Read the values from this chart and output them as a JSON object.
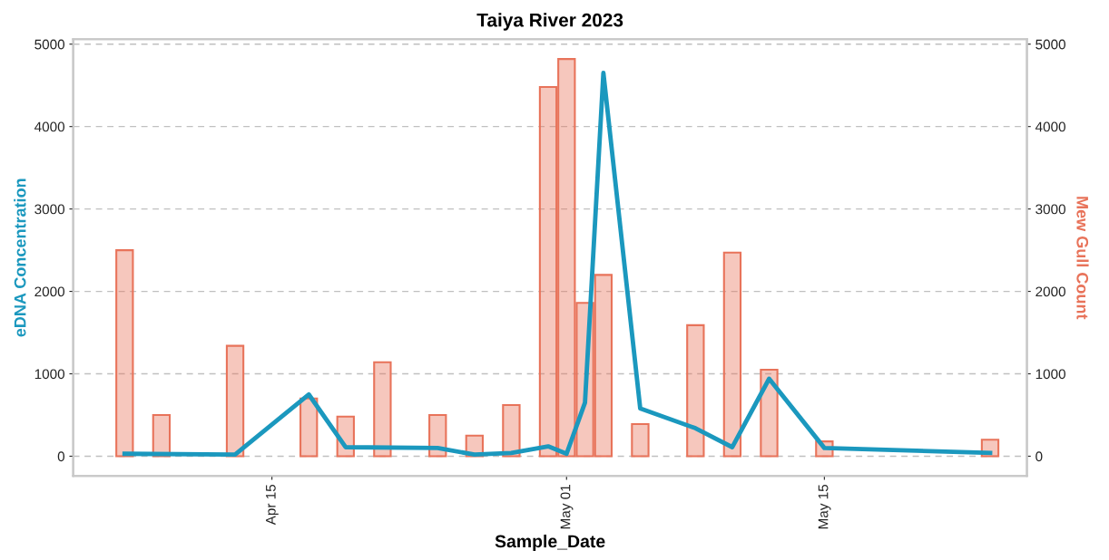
{
  "chart_data": {
    "type": "line",
    "title": "Taiya River 2023",
    "xlabel": "Sample_Date",
    "ylabel": "eDNA Concentration",
    "y2label": "Mew Gull Count",
    "series": [
      {
        "type": "bar",
        "axis": "y2",
        "color": "#e8735a",
        "x": [
          "2023-04-07",
          "2023-04-09",
          "2023-04-13",
          "2023-04-17",
          "2023-04-19",
          "2023-04-21",
          "2023-04-24",
          "2023-04-26",
          "2023-04-28",
          "2023-04-30",
          "2023-05-01",
          "2023-05-02",
          "2023-05-03",
          "2023-05-05",
          "2023-05-08",
          "2023-05-10",
          "2023-05-12",
          "2023-05-15",
          "2023-05-24"
        ],
        "values": [
          2500,
          500,
          1340,
          700,
          480,
          1140,
          500,
          250,
          620,
          4480,
          4820,
          1860,
          2200,
          390,
          1590,
          2470,
          1050,
          180,
          200
        ]
      },
      {
        "axis": "y",
        "color": "#1b98be",
        "x": [
          "2023-04-07",
          "2023-04-13",
          "2023-04-17",
          "2023-04-19",
          "2023-04-24",
          "2023-04-26",
          "2023-04-28",
          "2023-04-30",
          "2023-05-01",
          "2023-05-02",
          "2023-05-03",
          "2023-05-05",
          "2023-05-08",
          "2023-05-10",
          "2023-05-12",
          "2023-05-15",
          "2023-05-24"
        ],
        "values": [
          30,
          20,
          750,
          110,
          100,
          20,
          40,
          120,
          30,
          650,
          4650,
          580,
          340,
          110,
          940,
          100,
          40
        ]
      }
    ],
    "xlim": [
      "2023-04-04T05:00",
      "2023-05-26"
    ],
    "xticks": [
      {
        "value": "2023-04-15",
        "label": "Apr 15"
      },
      {
        "value": "2023-05-01",
        "label": "May 01"
      },
      {
        "value": "2023-05-15",
        "label": "May 15"
      }
    ],
    "ylim": [
      -240,
      5060
    ],
    "yticks": [
      0,
      1000,
      2000,
      3000,
      4000,
      5000
    ],
    "y2lim": [
      -240,
      5060
    ],
    "y2ticks": [
      0,
      1000,
      2000,
      3000,
      4000,
      5000
    ],
    "grid": true,
    "legend": false
  }
}
